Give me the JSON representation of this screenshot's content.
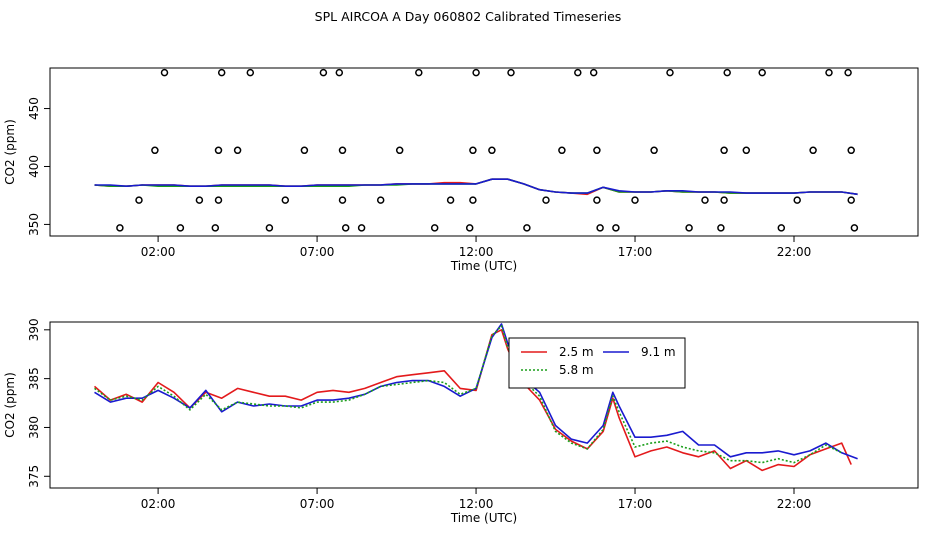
{
  "chart_data": [
    {
      "type": "scatter",
      "title": "SPL AIRCOA A  Day 060802  Calibrated Timeseries",
      "xlabel": "Time (UTC)",
      "ylabel": "CO2 (ppm)",
      "xlim": [
        -1.4,
        25.9
      ],
      "ylim": [
        340,
        485
      ],
      "x_ticks": [
        2,
        7,
        12,
        17,
        22
      ],
      "x_tick_labels": [
        "02:00",
        "07:00",
        "12:00",
        "17:00",
        "22:00"
      ],
      "y_ticks": [
        350,
        400,
        450
      ],
      "y_tick_labels": [
        "350",
        "400",
        "450"
      ],
      "calibration_points": {
        "x": [
          0.8,
          1.4,
          1.9,
          2.2,
          2.7,
          3.3,
          3.8,
          3.9,
          3.9,
          4.0,
          4.5,
          4.9,
          5.5,
          6.0,
          6.6,
          7.2,
          7.7,
          7.8,
          7.8,
          7.9,
          8.4,
          9.0,
          9.6,
          10.2,
          10.7,
          11.2,
          11.8,
          11.9,
          11.9,
          12.0,
          12.5,
          13.1,
          13.6,
          14.2,
          14.7,
          15.2,
          15.7,
          15.8,
          15.8,
          15.9,
          16.4,
          17.0,
          17.6,
          18.1,
          18.7,
          19.2,
          19.7,
          19.8,
          19.8,
          19.9,
          20.5,
          21.0,
          21.6,
          22.1,
          22.6,
          23.1,
          23.7,
          23.8,
          23.8,
          23.9
        ],
        "y": [
          347,
          371,
          414,
          481,
          347,
          371,
          347,
          371,
          414,
          481,
          414,
          481,
          347,
          371,
          414,
          481,
          481,
          414,
          371,
          347,
          347,
          371,
          414,
          481,
          347,
          371,
          347,
          371,
          414,
          481,
          414,
          481,
          347,
          371,
          414,
          481,
          481,
          414,
          371,
          347,
          347,
          371,
          414,
          481,
          347,
          371,
          347,
          371,
          414,
          481,
          414,
          481,
          347,
          371,
          414,
          481,
          481,
          414,
          371,
          347
        ],
        "color": "#000000"
      },
      "series": [
        {
          "name": "2.5 m",
          "color": "#e31a1c",
          "x": [
            0.0,
            0.5,
            1.0,
            1.5,
            2.0,
            2.5,
            3.0,
            3.5,
            4.0,
            4.5,
            5.0,
            5.5,
            6.0,
            6.5,
            7.0,
            7.5,
            8.0,
            8.5,
            9.0,
            9.5,
            10.0,
            10.5,
            11.0,
            11.5,
            12.0,
            12.5,
            13.0,
            13.5,
            14.0,
            14.5,
            15.0,
            15.5,
            16.0,
            16.5,
            17.0,
            17.5,
            18.0,
            18.5,
            19.0,
            19.5,
            20.0,
            20.5,
            21.0,
            21.5,
            22.0,
            22.5,
            23.0,
            23.5,
            24.0
          ],
          "values": [
            384,
            383,
            383,
            384,
            384,
            384,
            383,
            383,
            384,
            384,
            384,
            384,
            383,
            383,
            384,
            384,
            384,
            384,
            384,
            385,
            385,
            385,
            386,
            386,
            385,
            389,
            389,
            385,
            380,
            378,
            377,
            376,
            382,
            378,
            378,
            378,
            379,
            378,
            378,
            378,
            377,
            377,
            377,
            377,
            377,
            378,
            378,
            378,
            376
          ]
        },
        {
          "name": "5.8 m",
          "color": "#1a9e1a",
          "x": [
            0.0,
            0.5,
            1.0,
            1.5,
            2.0,
            2.5,
            3.0,
            3.5,
            4.0,
            4.5,
            5.0,
            5.5,
            6.0,
            6.5,
            7.0,
            7.5,
            8.0,
            8.5,
            9.0,
            9.5,
            10.0,
            10.5,
            11.0,
            11.5,
            12.0,
            12.5,
            13.0,
            13.5,
            14.0,
            14.5,
            15.0,
            15.5,
            16.0,
            16.5,
            17.0,
            17.5,
            18.0,
            18.5,
            19.0,
            19.5,
            20.0,
            20.5,
            21.0,
            21.5,
            22.0,
            22.5,
            23.0,
            23.5,
            24.0
          ],
          "values": [
            384,
            383,
            383,
            384,
            383,
            383,
            383,
            383,
            383,
            383,
            383,
            383,
            383,
            383,
            383,
            383,
            383,
            384,
            384,
            384,
            385,
            385,
            385,
            385,
            385,
            389,
            389,
            385,
            380,
            378,
            377,
            377,
            382,
            378,
            378,
            378,
            379,
            378,
            378,
            378,
            377,
            377,
            377,
            377,
            377,
            378,
            378,
            378,
            376
          ]
        },
        {
          "name": "9.1 m",
          "color": "#1a1acf",
          "x": [
            0.0,
            0.5,
            1.0,
            1.5,
            2.0,
            2.5,
            3.0,
            3.5,
            4.0,
            4.5,
            5.0,
            5.5,
            6.0,
            6.5,
            7.0,
            7.5,
            8.0,
            8.5,
            9.0,
            9.5,
            10.0,
            10.5,
            11.0,
            11.5,
            12.0,
            12.5,
            13.0,
            13.5,
            14.0,
            14.5,
            15.0,
            15.5,
            16.0,
            16.5,
            17.0,
            17.5,
            18.0,
            18.5,
            19.0,
            19.5,
            20.0,
            20.5,
            21.0,
            21.5,
            22.0,
            22.5,
            23.0,
            23.5,
            24.0
          ],
          "values": [
            384,
            384,
            383,
            384,
            384,
            384,
            383,
            383,
            384,
            384,
            384,
            384,
            383,
            383,
            384,
            384,
            384,
            384,
            384,
            385,
            385,
            385,
            385,
            385,
            385,
            389,
            389,
            385,
            380,
            378,
            377,
            377,
            382,
            379,
            378,
            378,
            379,
            379,
            378,
            378,
            378,
            377,
            377,
            377,
            377,
            378,
            378,
            378,
            376
          ]
        }
      ]
    },
    {
      "type": "line",
      "title": "",
      "xlabel": "Time (UTC)",
      "ylabel": "CO2 (ppm)",
      "xlim": [
        -1.4,
        25.9
      ],
      "ylim": [
        373.8,
        390.8
      ],
      "x_ticks": [
        2,
        7,
        12,
        17,
        22
      ],
      "x_tick_labels": [
        "02:00",
        "07:00",
        "12:00",
        "17:00",
        "22:00"
      ],
      "y_ticks": [
        375,
        380,
        385,
        390
      ],
      "y_tick_labels": [
        "375",
        "380",
        "385",
        "390"
      ],
      "legend": {
        "position": "top-center",
        "entries": [
          "2.5 m",
          "9.1 m",
          "5.8 m"
        ]
      },
      "series": [
        {
          "name": "2.5 m",
          "color": "#e31a1c",
          "dash": "",
          "x": [
            0.0,
            0.5,
            1.0,
            1.5,
            2.0,
            2.5,
            3.0,
            3.5,
            4.0,
            4.5,
            5.0,
            5.5,
            6.0,
            6.5,
            7.0,
            7.5,
            8.0,
            8.5,
            9.0,
            9.5,
            10.0,
            10.5,
            11.0,
            11.5,
            12.0,
            12.5,
            12.8,
            13.0,
            13.5,
            14.0,
            14.5,
            15.0,
            15.5,
            16.0,
            16.3,
            16.5,
            17.0,
            17.5,
            18.0,
            18.5,
            19.0,
            19.5,
            20.0,
            20.5,
            21.0,
            21.5,
            22.0,
            22.5,
            23.0,
            23.5,
            23.8
          ],
          "values": [
            384.2,
            382.8,
            383.4,
            382.6,
            384.6,
            383.6,
            382.0,
            383.6,
            383.0,
            384.0,
            383.6,
            383.2,
            383.2,
            382.8,
            383.6,
            383.8,
            383.6,
            384.0,
            384.6,
            385.2,
            385.4,
            385.6,
            385.8,
            384.0,
            383.8,
            389.5,
            390.0,
            388.0,
            384.5,
            382.8,
            379.8,
            378.6,
            377.8,
            379.6,
            383.0,
            381.0,
            377.0,
            377.6,
            378.0,
            377.4,
            377.0,
            377.6,
            375.8,
            376.6,
            375.6,
            376.2,
            376.0,
            377.2,
            377.8,
            378.4,
            376.2
          ]
        },
        {
          "name": "9.1 m",
          "color": "#1a1acf",
          "dash": "",
          "x": [
            0.0,
            0.5,
            1.0,
            1.5,
            2.0,
            2.5,
            3.0,
            3.5,
            4.0,
            4.5,
            5.0,
            5.5,
            6.0,
            6.5,
            7.0,
            7.5,
            8.0,
            8.5,
            9.0,
            9.5,
            10.0,
            10.5,
            11.0,
            11.5,
            12.0,
            12.5,
            12.8,
            13.0,
            13.5,
            14.0,
            14.5,
            15.0,
            15.5,
            16.0,
            16.3,
            16.5,
            17.0,
            17.5,
            18.0,
            18.5,
            19.0,
            19.5,
            20.0,
            20.5,
            21.0,
            21.5,
            22.0,
            22.5,
            23.0,
            23.5,
            24.0
          ],
          "values": [
            383.6,
            382.6,
            383.0,
            383.0,
            383.8,
            383.0,
            382.0,
            383.8,
            381.6,
            382.6,
            382.2,
            382.4,
            382.2,
            382.2,
            382.8,
            382.8,
            383.0,
            383.4,
            384.2,
            384.6,
            384.8,
            384.8,
            384.2,
            383.2,
            384.0,
            389.2,
            390.6,
            388.6,
            385.0,
            383.6,
            380.2,
            378.8,
            378.4,
            380.2,
            383.6,
            382.2,
            379.0,
            379.0,
            379.2,
            379.6,
            378.2,
            378.2,
            377.0,
            377.4,
            377.4,
            377.6,
            377.2,
            377.6,
            378.4,
            377.4,
            376.8
          ]
        },
        {
          "name": "5.8 m",
          "color": "#1a9e1a",
          "dash": "2,2",
          "x": [
            0.0,
            0.5,
            1.0,
            1.5,
            2.0,
            2.5,
            3.0,
            3.5,
            4.0,
            4.5,
            5.0,
            5.5,
            6.0,
            6.5,
            7.0,
            7.5,
            8.0,
            8.5,
            9.0,
            9.5,
            10.0,
            10.5,
            11.0,
            11.5,
            12.0,
            12.5,
            12.8,
            13.0,
            13.5,
            14.0,
            14.5,
            15.0,
            15.5,
            16.0,
            16.3,
            16.5,
            17.0,
            17.5,
            18.0,
            18.5,
            19.0,
            19.5,
            20.0,
            20.5,
            21.0,
            21.5,
            22.0,
            22.5,
            23.0,
            23.5
          ],
          "values": [
            384.0,
            382.8,
            383.2,
            382.8,
            384.2,
            383.2,
            381.8,
            383.4,
            381.8,
            382.6,
            382.4,
            382.2,
            382.2,
            382.0,
            382.6,
            382.6,
            382.8,
            383.4,
            384.2,
            384.4,
            384.6,
            384.8,
            384.6,
            383.4,
            384.0,
            389.4,
            390.4,
            388.2,
            384.8,
            383.2,
            379.6,
            378.4,
            377.8,
            379.8,
            383.2,
            381.6,
            378.0,
            378.4,
            378.6,
            378.0,
            377.6,
            377.4,
            376.6,
            376.6,
            376.4,
            376.8,
            376.4,
            377.2,
            378.2,
            377.4
          ]
        }
      ]
    }
  ]
}
